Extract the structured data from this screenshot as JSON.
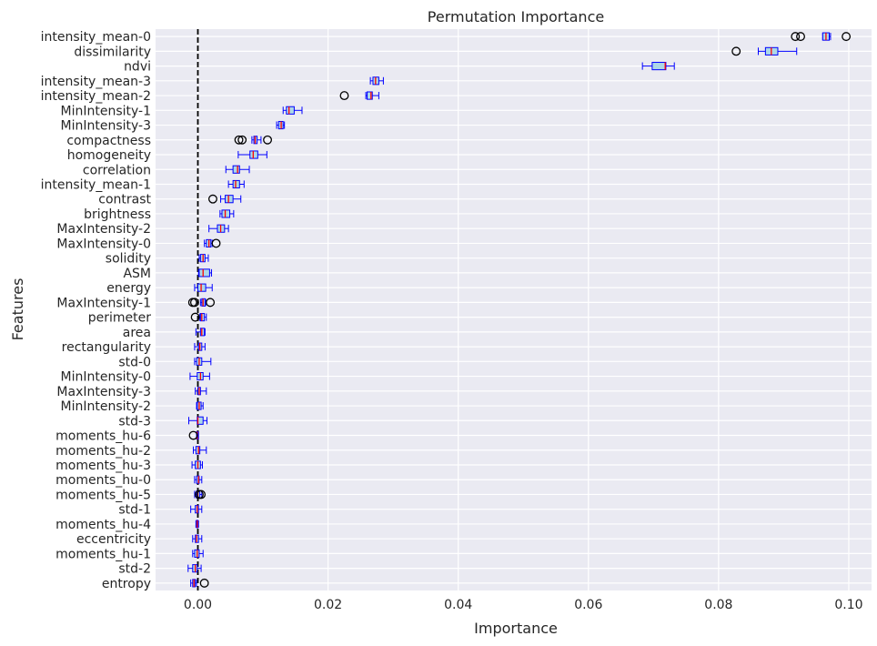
{
  "chart_data": {
    "type": "boxplot",
    "title": "Permutation Importance",
    "xlabel": "Importance",
    "ylabel": "Features",
    "xlim": [
      -0.0065,
      0.1035
    ],
    "xticks": [
      0.0,
      0.02,
      0.04,
      0.06,
      0.08,
      0.1
    ],
    "xtick_labels": [
      "0.00",
      "0.02",
      "0.04",
      "0.06",
      "0.08",
      "0.10"
    ],
    "grid": true,
    "reference_line": {
      "x": 0.0,
      "style": "dashed",
      "color": "#000000"
    },
    "colors": {
      "box_fill": "#add8e6",
      "box_edge": "#0000ff",
      "median": "#ff0000",
      "whisker": "#0000ff",
      "background": "#eaeaf2",
      "grid": "#ffffff"
    },
    "features": [
      {
        "name": "intensity_mean-0",
        "wlo": 0.096,
        "q1": 0.096,
        "med": 0.0965,
        "q3": 0.097,
        "whi": 0.0972,
        "fliers": [
          0.0918,
          0.0926,
          0.0996
        ]
      },
      {
        "name": "dissimilarity",
        "wlo": 0.0861,
        "q1": 0.0872,
        "med": 0.0881,
        "q3": 0.0891,
        "whi": 0.092,
        "fliers": [
          0.0827
        ]
      },
      {
        "name": "ndvi",
        "wlo": 0.0683,
        "q1": 0.0698,
        "med": 0.0718,
        "q3": 0.0719,
        "whi": 0.0732,
        "fliers": []
      },
      {
        "name": "intensity_mean-3",
        "wlo": 0.0265,
        "q1": 0.0269,
        "med": 0.0273,
        "q3": 0.0278,
        "whi": 0.0285,
        "fliers": []
      },
      {
        "name": "intensity_mean-2",
        "wlo": 0.0258,
        "q1": 0.026,
        "med": 0.0266,
        "q3": 0.0268,
        "whi": 0.0278,
        "fliers": [
          0.0225
        ]
      },
      {
        "name": "MinIntensity-1",
        "wlo": 0.0131,
        "q1": 0.0136,
        "med": 0.014,
        "q3": 0.0148,
        "whi": 0.016,
        "fliers": []
      },
      {
        "name": "MinIntensity-3",
        "wlo": 0.0121,
        "q1": 0.0124,
        "med": 0.0128,
        "q3": 0.0131,
        "whi": 0.0133,
        "fliers": []
      },
      {
        "name": "compactness",
        "wlo": 0.0083,
        "q1": 0.0086,
        "med": 0.0088,
        "q3": 0.0091,
        "whi": 0.0097,
        "fliers": [
          0.0063,
          0.0068,
          0.0107
        ]
      },
      {
        "name": "homogeneity",
        "wlo": 0.0062,
        "q1": 0.008,
        "med": 0.0085,
        "q3": 0.0092,
        "whi": 0.0106,
        "fliers": []
      },
      {
        "name": "correlation",
        "wlo": 0.0043,
        "q1": 0.0054,
        "med": 0.0061,
        "q3": 0.0064,
        "whi": 0.0079,
        "fliers": []
      },
      {
        "name": "intensity_mean-1",
        "wlo": 0.0047,
        "q1": 0.0054,
        "med": 0.0058,
        "q3": 0.0064,
        "whi": 0.0071,
        "fliers": []
      },
      {
        "name": "contrast",
        "wlo": 0.0035,
        "q1": 0.0042,
        "med": 0.0047,
        "q3": 0.0054,
        "whi": 0.0066,
        "fliers": [
          0.0023
        ]
      },
      {
        "name": "brightness",
        "wlo": 0.0034,
        "q1": 0.0037,
        "med": 0.0042,
        "q3": 0.0049,
        "whi": 0.0055,
        "fliers": []
      },
      {
        "name": "MaxIntensity-2",
        "wlo": 0.0017,
        "q1": 0.003,
        "med": 0.0035,
        "q3": 0.0041,
        "whi": 0.0047,
        "fliers": []
      },
      {
        "name": "MaxIntensity-0",
        "wlo": 0.001,
        "q1": 0.0013,
        "med": 0.0017,
        "q3": 0.002,
        "whi": 0.0022,
        "fliers": [
          0.0028
        ]
      },
      {
        "name": "solidity",
        "wlo": 0.0002,
        "q1": 0.0004,
        "med": 0.0008,
        "q3": 0.0011,
        "whi": 0.0016,
        "fliers": []
      },
      {
        "name": "ASM",
        "wlo": 0.0001,
        "q1": 0.0002,
        "med": 0.0008,
        "q3": 0.0018,
        "whi": 0.0021,
        "fliers": []
      },
      {
        "name": "energy",
        "wlo": -0.0005,
        "q1": 0.0,
        "med": 0.0005,
        "q3": 0.0012,
        "whi": 0.0022,
        "fliers": []
      },
      {
        "name": "MaxIntensity-1",
        "wlo": 0.0004,
        "q1": 0.0006,
        "med": 0.0008,
        "q3": 0.0011,
        "whi": 0.0012,
        "fliers": [
          -0.0008,
          -0.0005,
          0.0019
        ]
      },
      {
        "name": "perimeter",
        "wlo": 0.0003,
        "q1": 0.0004,
        "med": 0.0006,
        "q3": 0.001,
        "whi": 0.0013,
        "fliers": [
          -0.0004
        ]
      },
      {
        "name": "area",
        "wlo": -0.0003,
        "q1": 0.0004,
        "med": 0.0006,
        "q3": 0.001,
        "whi": 0.0011,
        "fliers": []
      },
      {
        "name": "rectangularity",
        "wlo": -0.0005,
        "q1": 0.0001,
        "med": 0.0003,
        "q3": 0.0006,
        "whi": 0.0011,
        "fliers": []
      },
      {
        "name": "std-0",
        "wlo": -0.0005,
        "q1": -0.0002,
        "med": 0.0002,
        "q3": 0.0006,
        "whi": 0.002,
        "fliers": []
      },
      {
        "name": "MinIntensity-0",
        "wlo": -0.0012,
        "q1": -0.0001,
        "med": 0.0004,
        "q3": 0.0008,
        "whi": 0.0018,
        "fliers": []
      },
      {
        "name": "MaxIntensity-3",
        "wlo": -0.0004,
        "q1": 0.0,
        "med": 0.0002,
        "q3": 0.0004,
        "whi": 0.0013,
        "fliers": []
      },
      {
        "name": "MinIntensity-2",
        "wlo": -0.0002,
        "q1": -0.0001,
        "med": 0.0002,
        "q3": 0.0005,
        "whi": 0.0008,
        "fliers": []
      },
      {
        "name": "std-3",
        "wlo": -0.0014,
        "q1": -0.0001,
        "med": 0.0,
        "q3": 0.0008,
        "whi": 0.0014,
        "fliers": []
      },
      {
        "name": "moments_hu-6",
        "wlo": -0.0002,
        "q1": -0.0002,
        "med": -0.0001,
        "q3": 0.0,
        "whi": 0.0001,
        "fliers": [
          -0.0007
        ]
      },
      {
        "name": "moments_hu-2",
        "wlo": -0.0007,
        "q1": -0.0003,
        "med": 0.0001,
        "q3": 0.0003,
        "whi": 0.0013,
        "fliers": []
      },
      {
        "name": "moments_hu-3",
        "wlo": -0.0009,
        "q1": -0.0004,
        "med": 0.0,
        "q3": 0.0004,
        "whi": 0.0007,
        "fliers": []
      },
      {
        "name": "moments_hu-0",
        "wlo": -0.0005,
        "q1": -0.0002,
        "med": 0.0001,
        "q3": 0.0002,
        "whi": 0.0006,
        "fliers": []
      },
      {
        "name": "moments_hu-5",
        "wlo": -0.0005,
        "q1": -0.0002,
        "med": 0.0,
        "q3": 0.0003,
        "whi": 0.0006,
        "fliers": [
          0.0002,
          0.0005
        ]
      },
      {
        "name": "std-1",
        "wlo": -0.0011,
        "q1": -0.0004,
        "med": -0.0001,
        "q3": 0.0001,
        "whi": 0.0006,
        "fliers": []
      },
      {
        "name": "moments_hu-4",
        "wlo": -0.0003,
        "q1": -0.0002,
        "med": -0.0001,
        "q3": 0.0,
        "whi": 0.0001,
        "fliers": []
      },
      {
        "name": "eccentricity",
        "wlo": -0.0008,
        "q1": -0.0004,
        "med": -0.0002,
        "q3": 0.0001,
        "whi": 0.0006,
        "fliers": []
      },
      {
        "name": "moments_hu-1",
        "wlo": -0.0008,
        "q1": -0.0005,
        "med": -0.0001,
        "q3": 0.0002,
        "whi": 0.0008,
        "fliers": []
      },
      {
        "name": "std-2",
        "wlo": -0.0015,
        "q1": -0.0008,
        "med": -0.0004,
        "q3": -0.0001,
        "whi": 0.0005,
        "fliers": []
      },
      {
        "name": "entropy",
        "wlo": -0.0011,
        "q1": -0.0008,
        "med": -0.0006,
        "q3": -0.0004,
        "whi": -0.0002,
        "fliers": [
          0.001
        ]
      }
    ]
  }
}
